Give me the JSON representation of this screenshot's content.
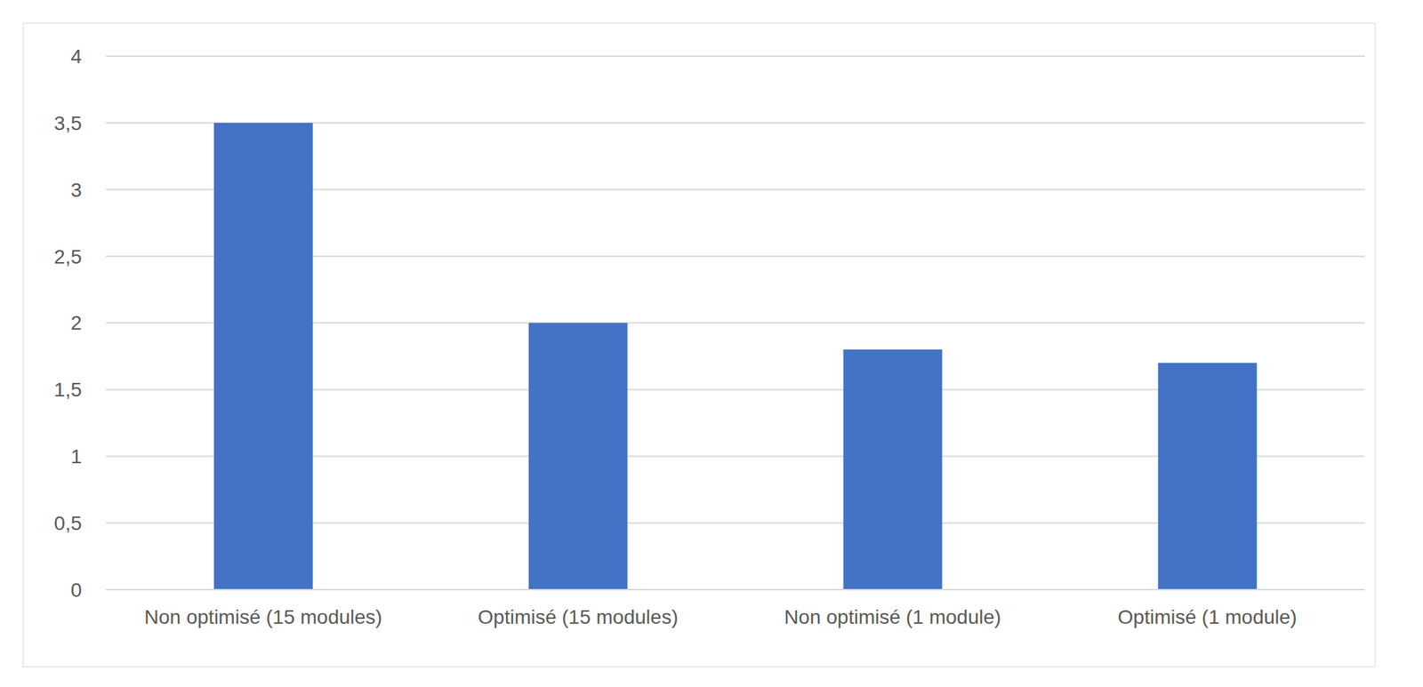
{
  "chart_data": {
    "type": "bar",
    "categories": [
      "Non optimisé (15 modules)",
      "Optimisé (15 modules)",
      "Non optimisé (1 module)",
      "Optimisé (1 module)"
    ],
    "values": [
      3.5,
      2,
      1.8,
      1.7
    ],
    "color": "#4472c4",
    "ylim": [
      0,
      4
    ],
    "yticks": [
      0,
      {
        "value": 0.5,
        "label": "0,5"
      },
      1,
      {
        "value": 1.5,
        "label": "1,5"
      },
      2,
      {
        "value": 2.5,
        "label": "2,5"
      },
      3,
      {
        "value": 3.5,
        "label": "3,5"
      },
      4
    ],
    "grid": true
  }
}
